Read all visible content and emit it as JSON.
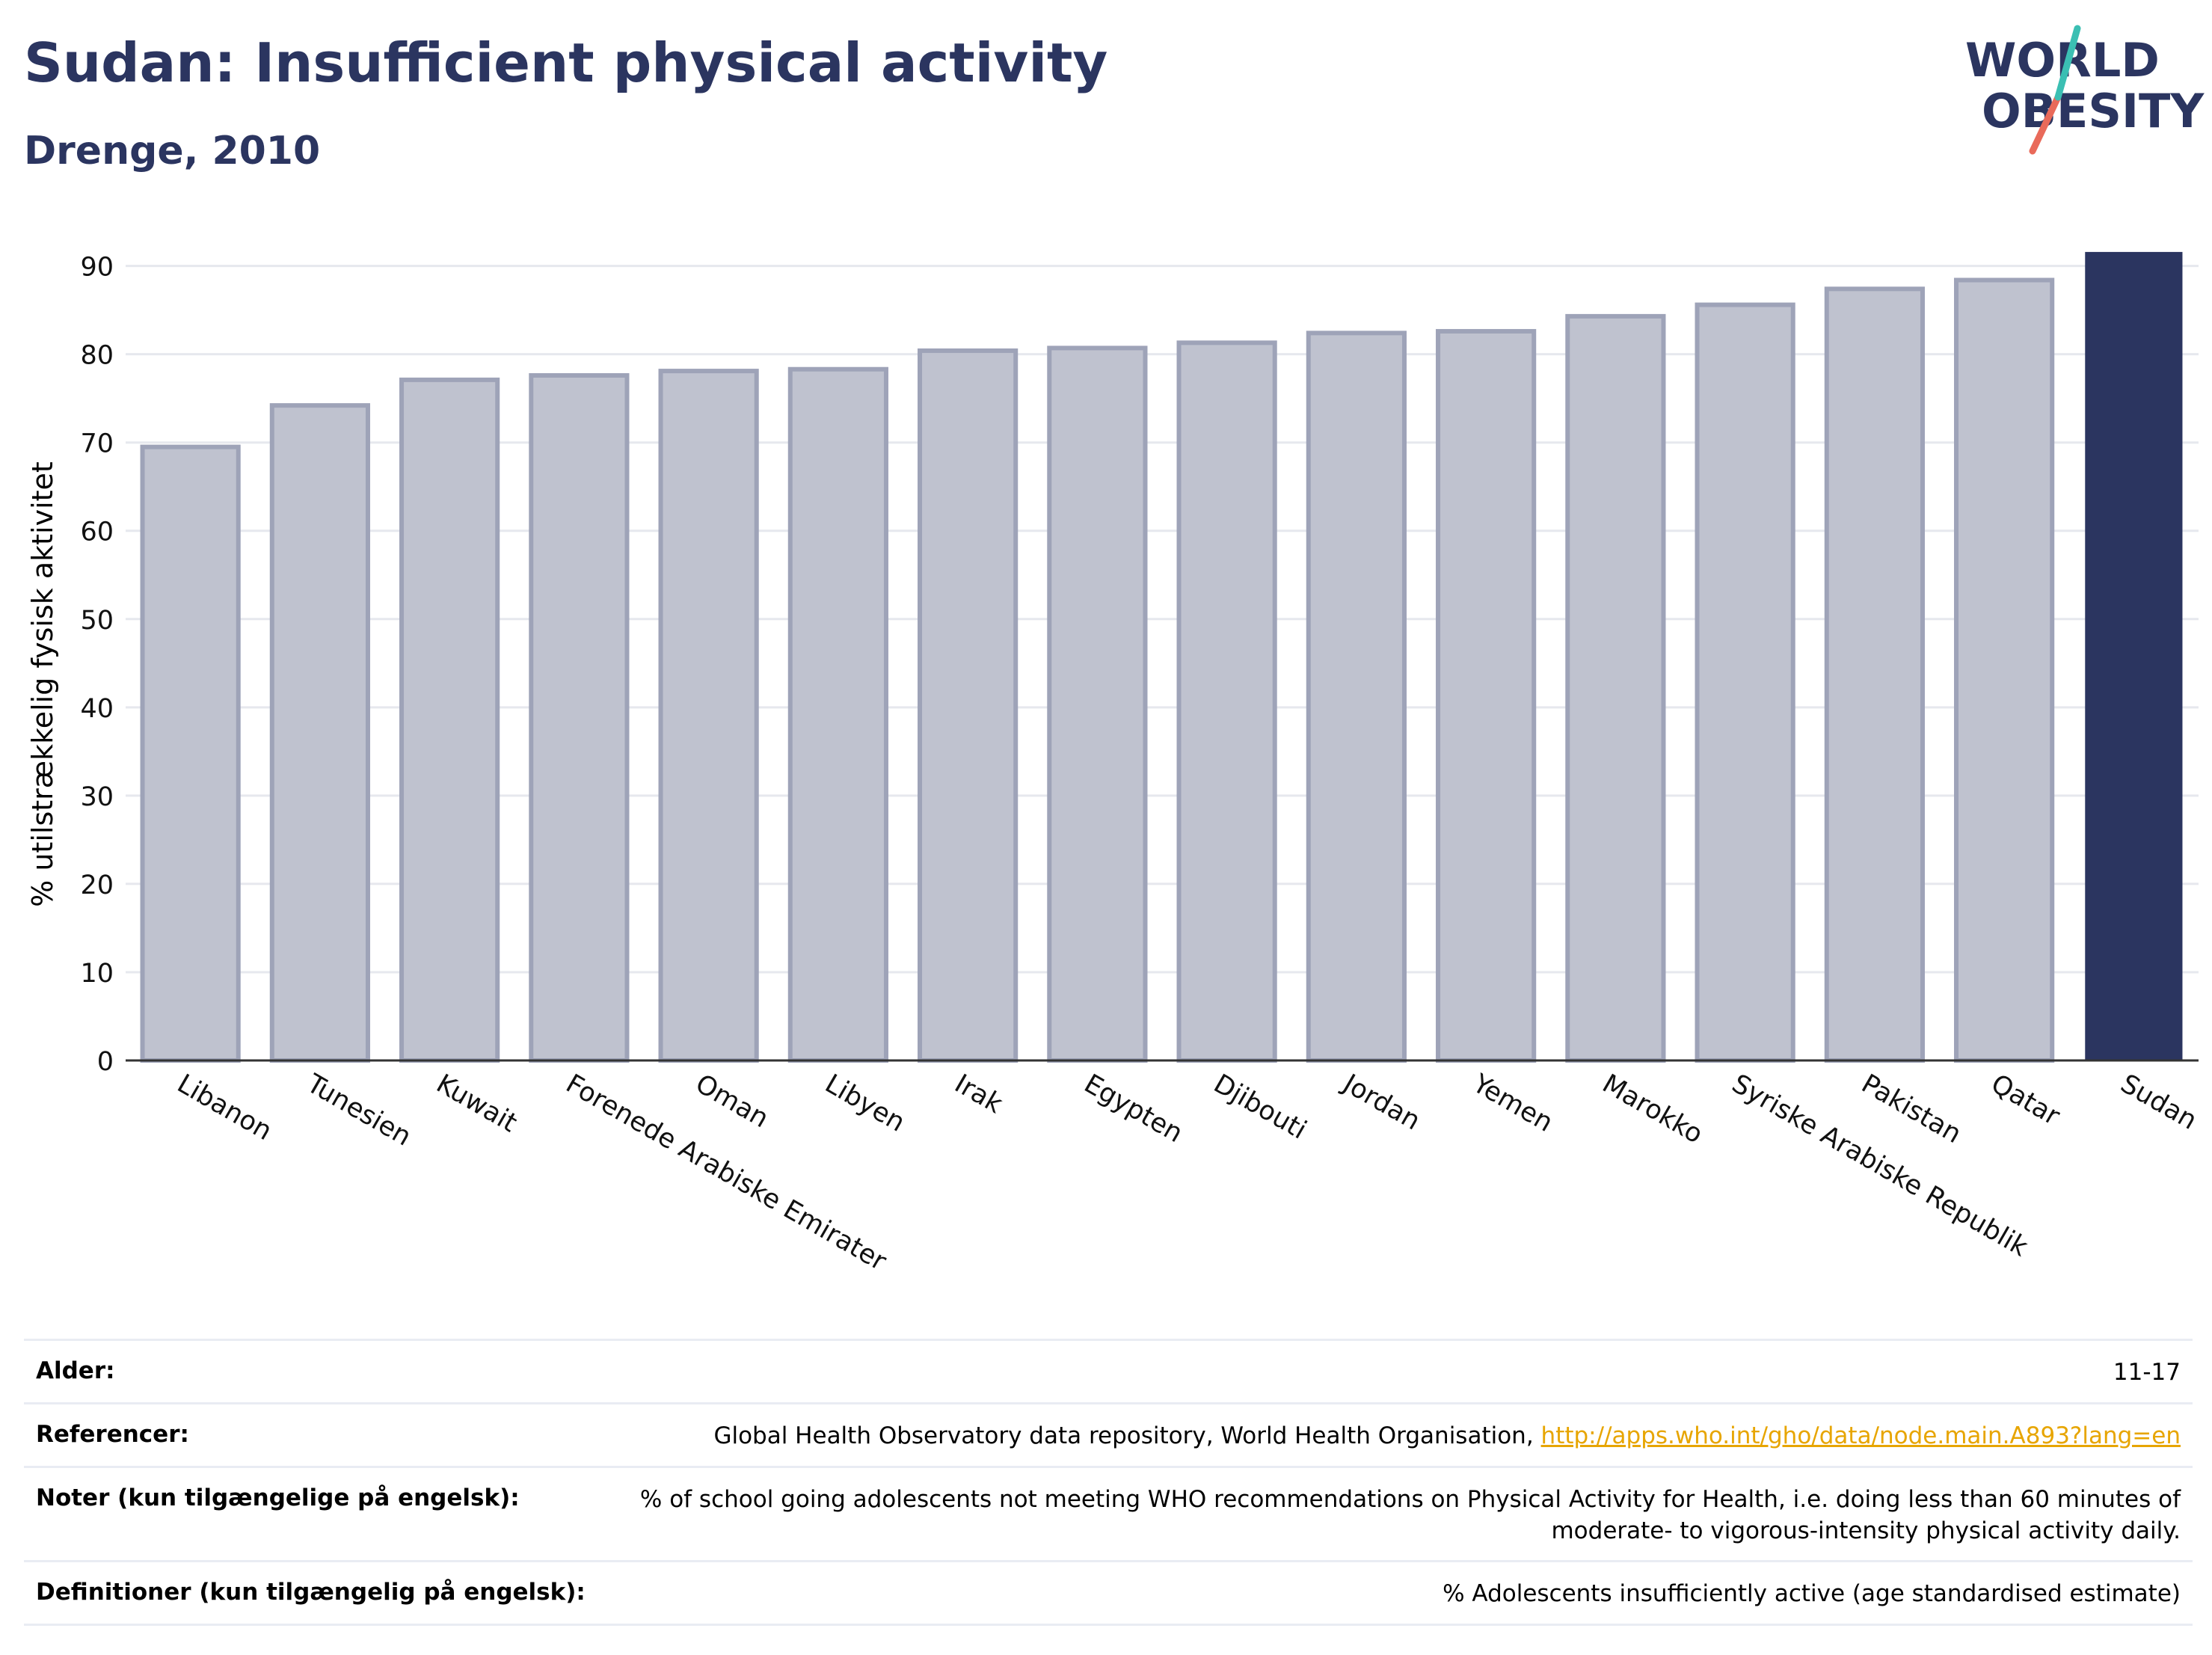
{
  "header": {
    "title": "Sudan: Insufficient physical activity",
    "subtitle": "Drenge, 2010"
  },
  "logo": {
    "line1": "WORLD",
    "line2": "OBESITY"
  },
  "colors": {
    "highlight": "#2b3560",
    "bar_fill": "#bfc2cf",
    "bar_stroke": "#9ea3b8",
    "link": "#e7a500",
    "title": "#2b3560"
  },
  "chart_data": {
    "type": "bar",
    "categories": [
      "Libanon",
      "Tunesien",
      "Kuwait",
      "Forenede Arabiske Emirater",
      "Oman",
      "Libyen",
      "Irak",
      "Egypten",
      "Djibouti",
      "Jordan",
      "Yemen",
      "Marokko",
      "Syriske Arabiske Republik",
      "Pakistan",
      "Qatar",
      "Sudan"
    ],
    "values": [
      69.5,
      74.2,
      77.1,
      77.6,
      78.1,
      78.3,
      80.4,
      80.7,
      81.3,
      82.4,
      82.6,
      84.3,
      85.6,
      87.4,
      88.4,
      91.5
    ],
    "highlight": "Sudan",
    "ylabel": "% utilstrækkelig fysisk aktivitet",
    "xlabel": "",
    "ylim": [
      0,
      92
    ],
    "yticks": [
      0,
      10,
      20,
      30,
      40,
      50,
      60,
      70,
      80,
      90
    ],
    "grid": true
  },
  "meta": {
    "age_label": "Alder:",
    "age_value": "11-17",
    "refs_label": "Referencer:",
    "refs_text": "Global Health Observatory data repository, World Health Organisation, ",
    "refs_link": "http://apps.who.int/gho/data/node.main.A893?lang=en",
    "notes_label": "Noter (kun tilgængelige på engelsk):",
    "notes_value": "% of school going adolescents not meeting WHO recommendations on Physical Activity for Health, i.e. doing less than 60 minutes of moderate- to vigorous-intensity physical activity daily.",
    "defs_label": "Definitioner (kun tilgængelig på engelsk):",
    "defs_value": "% Adolescents insufficiently active (age standardised estimate)"
  }
}
